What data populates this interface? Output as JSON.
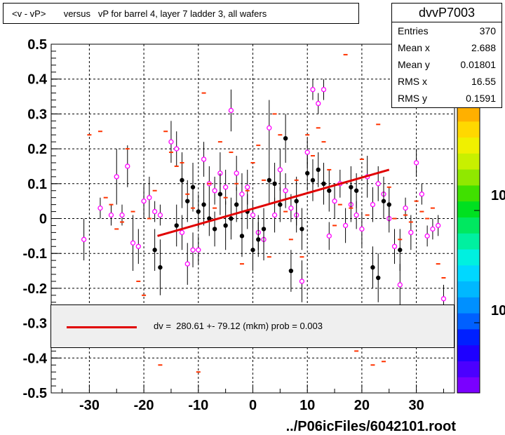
{
  "title": "<v - vP>       versus   vP for barrel 4, layer 7 ladder 3, all wafers",
  "stats": {
    "name": "dvvP7003",
    "rows": [
      {
        "label": "Entries",
        "value": "370"
      },
      {
        "label": "Mean x",
        "value": "2.688"
      },
      {
        "label": "Mean y",
        "value": "0.01801"
      },
      {
        "label": "RMS x",
        "value": "16.55"
      },
      {
        "label": "RMS y",
        "value": "0.1591"
      }
    ]
  },
  "fit": {
    "text": "dv =  280.61 +- 79.12 (mkm) prob = 0.003",
    "color": "#e00000"
  },
  "footer": "../P06icFiles/6042101.root",
  "palette": {
    "labels": [
      "10",
      "10"
    ],
    "colors": [
      "#7a00ff",
      "#4b00ff",
      "#1e00ff",
      "#0020ff",
      "#0060ff",
      "#0090ff",
      "#00b8ff",
      "#00d8ff",
      "#00f0e0",
      "#00f0a0",
      "#00e860",
      "#00e020",
      "#40e000",
      "#90e800",
      "#c8f000",
      "#f0f000",
      "#ffd800",
      "#ffb000"
    ]
  },
  "chart_data": {
    "type": "scatter",
    "xlim": [
      -37,
      37
    ],
    "ylim": [
      -0.5,
      0.5
    ],
    "x_ticks": [
      -30,
      -20,
      -10,
      0,
      10,
      20,
      30
    ],
    "y_ticks": [
      -0.5,
      -0.4,
      -0.3,
      -0.2,
      -0.1,
      0,
      0.1,
      0.2,
      0.3,
      0.4,
      0.5
    ],
    "y_tick_labels": [
      "-0.5",
      "-0.4",
      "-0.3",
      "-0.2",
      "-0.1",
      "0",
      "0.1",
      "0.2",
      "0.3",
      "0.4",
      "0.5"
    ],
    "grid": true,
    "fit_line": {
      "x": [
        -17.5,
        25
      ],
      "y": [
        -0.05,
        0.14
      ],
      "color": "#e00000"
    },
    "series": [
      {
        "marker": "open-circle",
        "color": "#ff00ff",
        "points": [
          [
            -31,
            -0.06,
            0.06
          ],
          [
            -28,
            0.03,
            0.03
          ],
          [
            -26,
            0.01,
            0.03
          ],
          [
            -25,
            0.12,
            0.08
          ],
          [
            -24,
            0.01,
            0.03
          ],
          [
            -23,
            0.15,
            0.06
          ],
          [
            -22,
            -0.07,
            0.08
          ],
          [
            -21,
            -0.08,
            0.05
          ],
          [
            -20,
            0.05,
            0.05
          ],
          [
            -19,
            0.06,
            0.06
          ],
          [
            -18,
            0.02,
            0.03
          ],
          [
            -17,
            0.01,
            0.03
          ],
          [
            -15,
            0.22,
            0.06
          ],
          [
            -14,
            0.2,
            0.05
          ],
          [
            -13,
            -0.04,
            0.05
          ],
          [
            -12,
            -0.13,
            0.06
          ],
          [
            -11,
            -0.09,
            0.05
          ],
          [
            -10,
            -0.09,
            0.04
          ],
          [
            -9,
            0.17,
            0.05
          ],
          [
            -8,
            0.1,
            0.05
          ],
          [
            -7,
            0.08,
            0.04
          ],
          [
            -6,
            0.13,
            0.06
          ],
          [
            -5,
            0.09,
            0.05
          ],
          [
            -4,
            0.31,
            0.06
          ],
          [
            -3,
            0.13,
            0.05
          ],
          [
            -2,
            0.07,
            0.06
          ],
          [
            -1,
            0.09,
            0.05
          ],
          [
            0,
            0.01,
            0.04
          ],
          [
            1,
            -0.04,
            0.05
          ],
          [
            2,
            -0.06,
            0.06
          ],
          [
            3,
            0.26,
            0.08
          ],
          [
            4,
            0.01,
            0.05
          ],
          [
            5,
            0.14,
            0.06
          ],
          [
            6,
            0.08,
            0.05
          ],
          [
            7,
            0.03,
            0.04
          ],
          [
            8,
            0.01,
            0.05
          ],
          [
            9,
            -0.18,
            0.06
          ],
          [
            10,
            0.19,
            0.04
          ],
          [
            11,
            0.37,
            0.03
          ],
          [
            12,
            0.33,
            0.03
          ],
          [
            13,
            0.37,
            0.03
          ],
          [
            14,
            -0.05,
            0.04
          ],
          [
            15,
            0.05,
            0.05
          ],
          [
            16,
            0.1,
            0.04
          ],
          [
            17,
            -0.02,
            0.05
          ],
          [
            18,
            0.04,
            0.05
          ],
          [
            19,
            0.01,
            0.04
          ],
          [
            20,
            -0.03,
            0.05
          ],
          [
            21,
            0.12,
            0.06
          ],
          [
            22,
            0.04,
            0.05
          ],
          [
            23,
            0.1,
            0.05
          ],
          [
            24,
            0.07,
            0.05
          ],
          [
            25,
            0.0,
            0.04
          ],
          [
            26,
            -0.08,
            0.05
          ],
          [
            27,
            -0.19,
            0.06
          ],
          [
            28,
            0.03,
            0.03
          ],
          [
            29,
            -0.04,
            0.05
          ],
          [
            30,
            0.16,
            0.04
          ],
          [
            31,
            0.07,
            0.03
          ],
          [
            32,
            -0.05,
            0.03
          ],
          [
            33,
            -0.03,
            0.03
          ],
          [
            34,
            -0.02,
            0.03
          ],
          [
            35,
            -0.23,
            0.04
          ]
        ]
      },
      {
        "marker": "filled-circle",
        "color": "#000000",
        "points": [
          [
            -18,
            -0.09,
            0.06
          ],
          [
            -17,
            -0.14,
            0.08
          ],
          [
            -14,
            -0.02,
            0.06
          ],
          [
            -13,
            0.11,
            0.08
          ],
          [
            -12,
            0.05,
            0.06
          ],
          [
            -11,
            0.09,
            0.07
          ],
          [
            -10,
            0.02,
            0.05
          ],
          [
            -9,
            0.04,
            0.06
          ],
          [
            -8,
            0.0,
            0.05
          ],
          [
            -7,
            -0.03,
            0.05
          ],
          [
            -6,
            0.07,
            0.06
          ],
          [
            -5,
            -0.02,
            0.07
          ],
          [
            -4,
            0.0,
            0.06
          ],
          [
            -3,
            0.04,
            0.05
          ],
          [
            -2,
            -0.05,
            0.06
          ],
          [
            -1,
            0.02,
            0.05
          ],
          [
            0,
            -0.09,
            0.06
          ],
          [
            1,
            -0.06,
            0.05
          ],
          [
            2,
            -0.03,
            0.06
          ],
          [
            3,
            0.11,
            0.07
          ],
          [
            4,
            0.1,
            0.06
          ],
          [
            5,
            0.04,
            0.05
          ],
          [
            6,
            0.23,
            0.07
          ],
          [
            7,
            -0.15,
            0.06
          ],
          [
            8,
            0.05,
            0.07
          ],
          [
            9,
            -0.03,
            0.06
          ],
          [
            10,
            0.13,
            0.05
          ],
          [
            11,
            0.11,
            0.06
          ],
          [
            12,
            0.14,
            0.05
          ],
          [
            13,
            0.1,
            0.06
          ],
          [
            14,
            0.08,
            0.06
          ],
          [
            18,
            0.09,
            0.06
          ],
          [
            19,
            0.08,
            0.05
          ],
          [
            22,
            -0.14,
            0.06
          ],
          [
            23,
            -0.17,
            0.07
          ],
          [
            24,
            0.05,
            0.05
          ],
          [
            25,
            0.04,
            0.05
          ],
          [
            27,
            -0.09,
            0.06
          ]
        ]
      },
      {
        "marker": "dash",
        "color": "#ff3300",
        "points": [
          [
            -30,
            0.24
          ],
          [
            -28,
            0.25
          ],
          [
            -27,
            0.06
          ],
          [
            -26,
            0.04
          ],
          [
            -25,
            -0.03
          ],
          [
            -24,
            -0.01
          ],
          [
            -23,
            0.2
          ],
          [
            -22,
            0.02
          ],
          [
            -21,
            -0.18
          ],
          [
            -20,
            -0.22
          ],
          [
            -19,
            0.0
          ],
          [
            -18,
            0.08
          ],
          [
            -17,
            -0.42
          ],
          [
            -16,
            0.25
          ],
          [
            -15,
            0.19
          ],
          [
            -14,
            0.15
          ],
          [
            -13,
            0.16
          ],
          [
            -12,
            0.07
          ],
          [
            -11,
            0.03
          ],
          [
            -10,
            -0.44
          ],
          [
            -9,
            0.36
          ],
          [
            -8,
            0.1
          ],
          [
            -7,
            0.03
          ],
          [
            -6,
            0.22
          ],
          [
            -5,
            0.06
          ],
          [
            -4,
            0.19
          ],
          [
            -3,
            0.1
          ],
          [
            -2,
            -0.13
          ],
          [
            -1,
            0.08
          ],
          [
            0,
            0.16
          ],
          [
            1,
            0.21
          ],
          [
            2,
            0.11
          ],
          [
            3,
            -0.11
          ],
          [
            4,
            0.3
          ],
          [
            5,
            0.24
          ],
          [
            6,
            0.02
          ],
          [
            7,
            -0.06
          ],
          [
            8,
            0.11
          ],
          [
            9,
            -0.11
          ],
          [
            10,
            0.24
          ],
          [
            11,
            0.18
          ],
          [
            12,
            0.26
          ],
          [
            13,
            0.22
          ],
          [
            14,
            0.14
          ],
          [
            15,
            -0.02
          ],
          [
            16,
            0.04
          ],
          [
            17,
            0.47
          ],
          [
            18,
            0.03
          ],
          [
            19,
            -0.38
          ],
          [
            20,
            0.17
          ],
          [
            21,
            0.01
          ],
          [
            22,
            -0.42
          ],
          [
            23,
            0.27
          ],
          [
            24,
            -0.41
          ],
          [
            25,
            0.09
          ],
          [
            26,
            0.0
          ],
          [
            27,
            -0.06
          ],
          [
            28,
            0.01
          ],
          [
            29,
            -0.01
          ],
          [
            30,
            0.05
          ],
          [
            31,
            0.02
          ],
          [
            32,
            0.0
          ],
          [
            33,
            0.03
          ],
          [
            34,
            -0.13
          ],
          [
            35,
            -0.17
          ]
        ]
      }
    ]
  }
}
